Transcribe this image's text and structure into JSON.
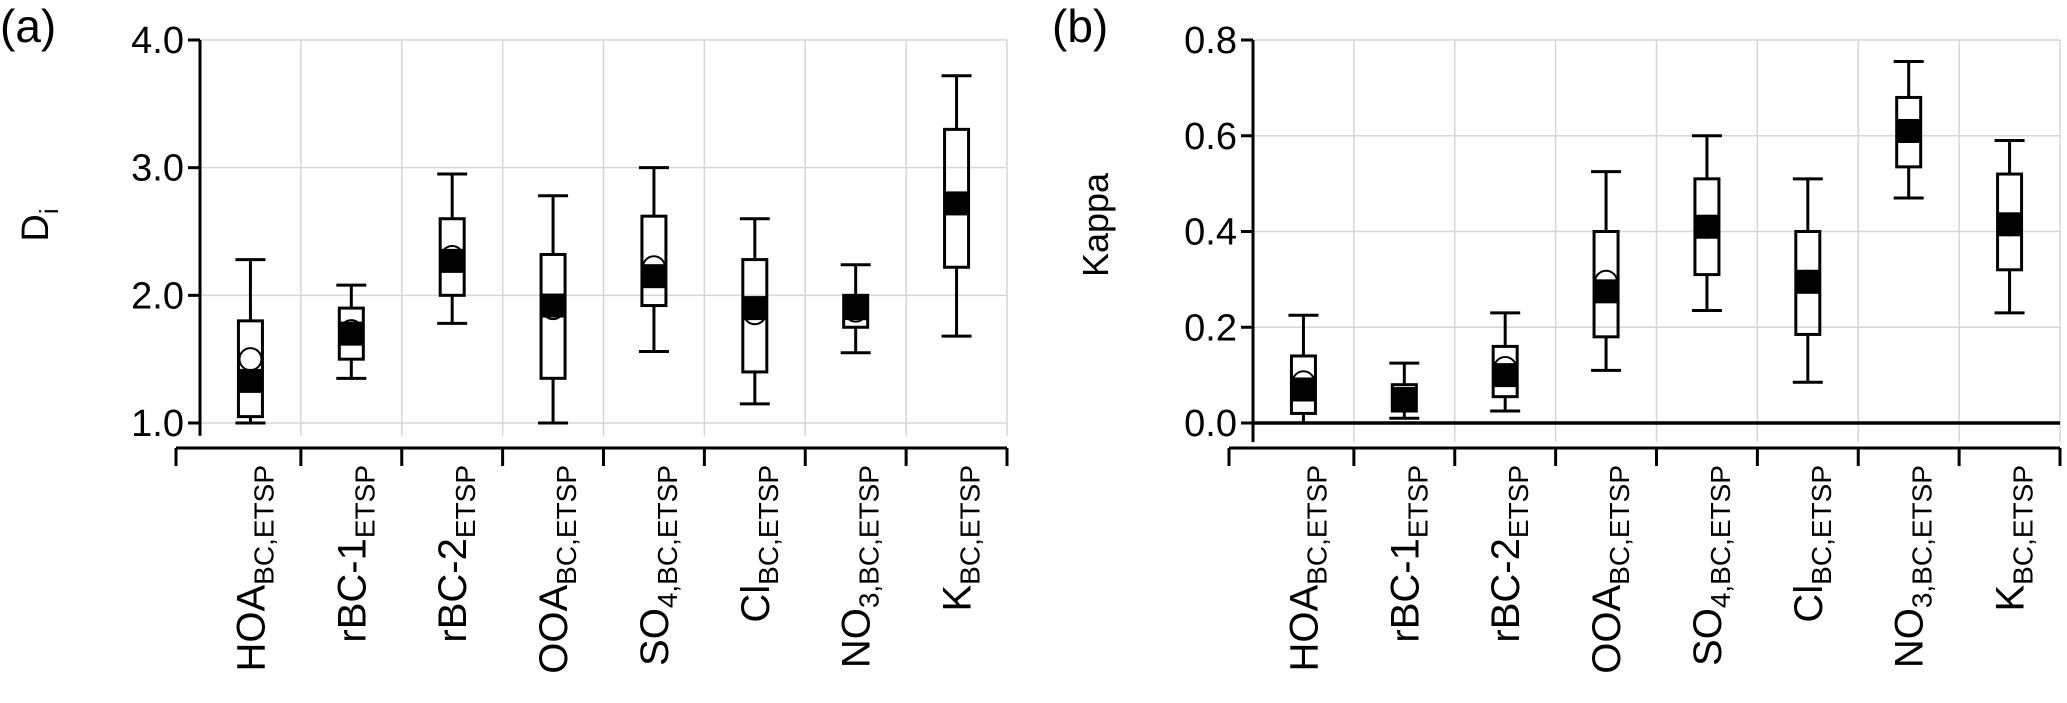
{
  "chart_data": [
    {
      "panel": "(a)",
      "type": "box",
      "ylabel": "D",
      "ylabel_sub": "i",
      "ylim": [
        0.9,
        4.0
      ],
      "yticks": [
        "1.0",
        "2.0",
        "3.0",
        "4.0"
      ],
      "ytick_values": [
        1.0,
        2.0,
        3.0,
        4.0
      ],
      "grid": true,
      "categories": [
        {
          "main": "HOA",
          "sub": "BC,ETSP"
        },
        {
          "main": "rBC-1",
          "sub": "ETSP"
        },
        {
          "main": "rBC-2",
          "sub": "ETSP"
        },
        {
          "main": "OOA",
          "sub": "BC,ETSP"
        },
        {
          "main": "SO",
          "sub": "4,BC,ETSP"
        },
        {
          "main": "Cl",
          "sub": "BC,ETSP"
        },
        {
          "main": "NO",
          "sub": "3,BC,ETSP"
        },
        {
          "main": "K",
          "sub": "BC,ETSP"
        }
      ],
      "boxes": [
        {
          "whisker_low": 1.0,
          "q1": 1.05,
          "median": 1.33,
          "q3": 1.8,
          "whisker_high": 2.28,
          "mean": 1.5
        },
        {
          "whisker_low": 1.35,
          "q1": 1.5,
          "median": 1.7,
          "q3": 1.9,
          "whisker_high": 2.08,
          "mean": 1.72
        },
        {
          "whisker_low": 1.78,
          "q1": 2.0,
          "median": 2.27,
          "q3": 2.6,
          "whisker_high": 2.95,
          "mean": 2.3
        },
        {
          "whisker_low": 1.0,
          "q1": 1.35,
          "median": 1.92,
          "q3": 2.32,
          "whisker_high": 2.78,
          "mean": 1.9
        },
        {
          "whisker_low": 1.56,
          "q1": 1.92,
          "median": 2.15,
          "q3": 2.62,
          "whisker_high": 3.0,
          "mean": 2.22
        },
        {
          "whisker_low": 1.15,
          "q1": 1.4,
          "median": 1.9,
          "q3": 2.28,
          "whisker_high": 2.6,
          "mean": 1.86
        },
        {
          "whisker_low": 1.55,
          "q1": 1.75,
          "median": 1.9,
          "q3": 2.0,
          "whisker_high": 2.24,
          "mean": 1.88
        },
        {
          "whisker_low": 1.68,
          "q1": 2.22,
          "median": 2.72,
          "q3": 3.3,
          "whisker_high": 3.72,
          "mean": 2.72
        }
      ]
    },
    {
      "panel": "(b)",
      "type": "box",
      "ylabel": "Kappa",
      "ylim": [
        -0.04,
        0.8
      ],
      "yticks": [
        "0.0",
        "0.2",
        "0.4",
        "0.6",
        "0.8"
      ],
      "ytick_values": [
        0.0,
        0.2,
        0.4,
        0.6,
        0.8
      ],
      "grid": true,
      "categories": [
        {
          "main": "HOA",
          "sub": "BC,ETSP"
        },
        {
          "main": "rBC-1",
          "sub": "ETSP"
        },
        {
          "main": "rBC-2",
          "sub": "ETSP"
        },
        {
          "main": "OOA",
          "sub": "BC,ETSP"
        },
        {
          "main": "SO",
          "sub": "4,BC,ETSP"
        },
        {
          "main": "Cl",
          "sub": "BC,ETSP"
        },
        {
          "main": "NO",
          "sub": "3,BC,ETSP"
        },
        {
          "main": "K",
          "sub": "BC,ETSP"
        }
      ],
      "boxes": [
        {
          "whisker_low": 0.0,
          "q1": 0.02,
          "median": 0.07,
          "q3": 0.14,
          "whisker_high": 0.225,
          "mean": 0.085
        },
        {
          "whisker_low": 0.01,
          "q1": 0.025,
          "median": 0.05,
          "q3": 0.08,
          "whisker_high": 0.125,
          "mean": 0.05
        },
        {
          "whisker_low": 0.025,
          "q1": 0.055,
          "median": 0.1,
          "q3": 0.16,
          "whisker_high": 0.23,
          "mean": 0.115
        },
        {
          "whisker_low": 0.11,
          "q1": 0.18,
          "median": 0.275,
          "q3": 0.4,
          "whisker_high": 0.525,
          "mean": 0.295
        },
        {
          "whisker_low": 0.235,
          "q1": 0.31,
          "median": 0.41,
          "q3": 0.51,
          "whisker_high": 0.6,
          "mean": 0.41
        },
        {
          "whisker_low": 0.085,
          "q1": 0.185,
          "median": 0.295,
          "q3": 0.4,
          "whisker_high": 0.51,
          "mean": 0.295
        },
        {
          "whisker_low": 0.47,
          "q1": 0.535,
          "median": 0.61,
          "q3": 0.68,
          "whisker_high": 0.755,
          "mean": 0.61
        },
        {
          "whisker_low": 0.23,
          "q1": 0.32,
          "median": 0.415,
          "q3": 0.52,
          "whisker_high": 0.59,
          "mean": 0.415
        }
      ]
    }
  ]
}
